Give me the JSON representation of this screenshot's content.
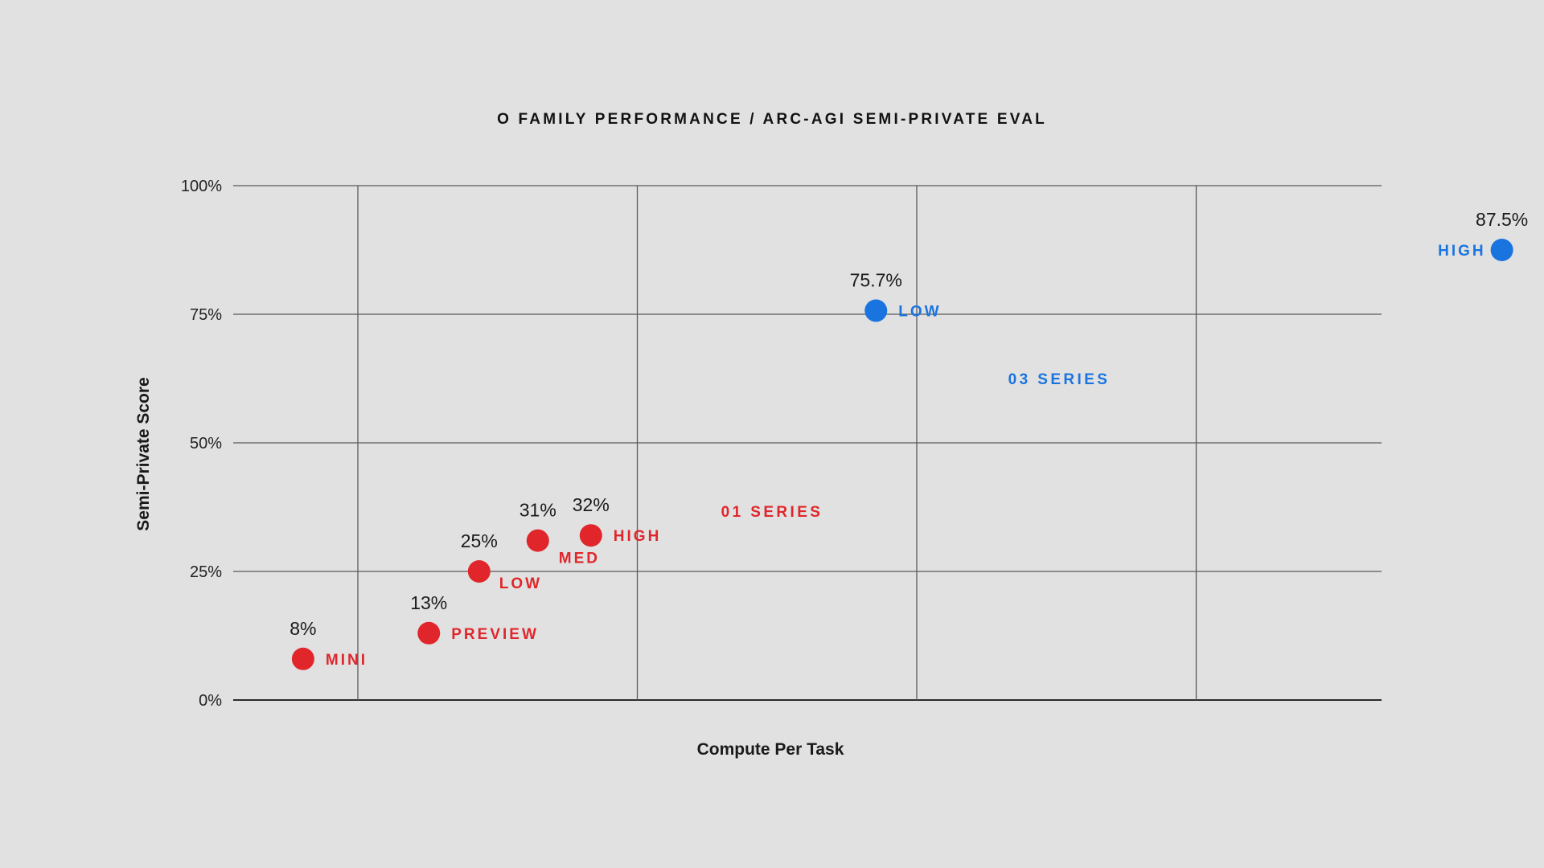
{
  "chart_data": {
    "type": "scatter",
    "title": "O FAMILY PERFORMANCE / ARC-AGI SEMI-PRIVATE EVAL",
    "xlabel": "Compute Per Task",
    "ylabel": "Semi-Private Score",
    "ylim": [
      0,
      100
    ],
    "yticks": [
      {
        "value": 0,
        "label": "0%"
      },
      {
        "value": 25,
        "label": "25%"
      },
      {
        "value": 50,
        "label": "50%"
      },
      {
        "value": 75,
        "label": "75%"
      },
      {
        "value": 100,
        "label": "100%"
      }
    ],
    "x_tick_labels_shown": false,
    "grid": true,
    "series": [
      {
        "name": "01 SERIES",
        "color": "#e0262b",
        "points": [
          {
            "label": "MINI",
            "x": 0.25,
            "y": 8,
            "value_label": "8%"
          },
          {
            "label": "PREVIEW",
            "x": 0.7,
            "y": 13,
            "value_label": "13%"
          },
          {
            "label": "LOW",
            "x": 0.88,
            "y": 25,
            "value_label": "25%"
          },
          {
            "label": "MED",
            "x": 1.09,
            "y": 31,
            "value_label": "31%"
          },
          {
            "label": "HIGH",
            "x": 1.28,
            "y": 32,
            "value_label": "32%"
          }
        ]
      },
      {
        "name": "03 SERIES",
        "color": "#1a74e0",
        "points": [
          {
            "label": "LOW",
            "x": 2.3,
            "y": 75.7,
            "value_label": "75.7%"
          },
          {
            "label": "HIGH",
            "x": 4.54,
            "y": 87.5,
            "value_label": "87.5%"
          }
        ]
      }
    ]
  }
}
